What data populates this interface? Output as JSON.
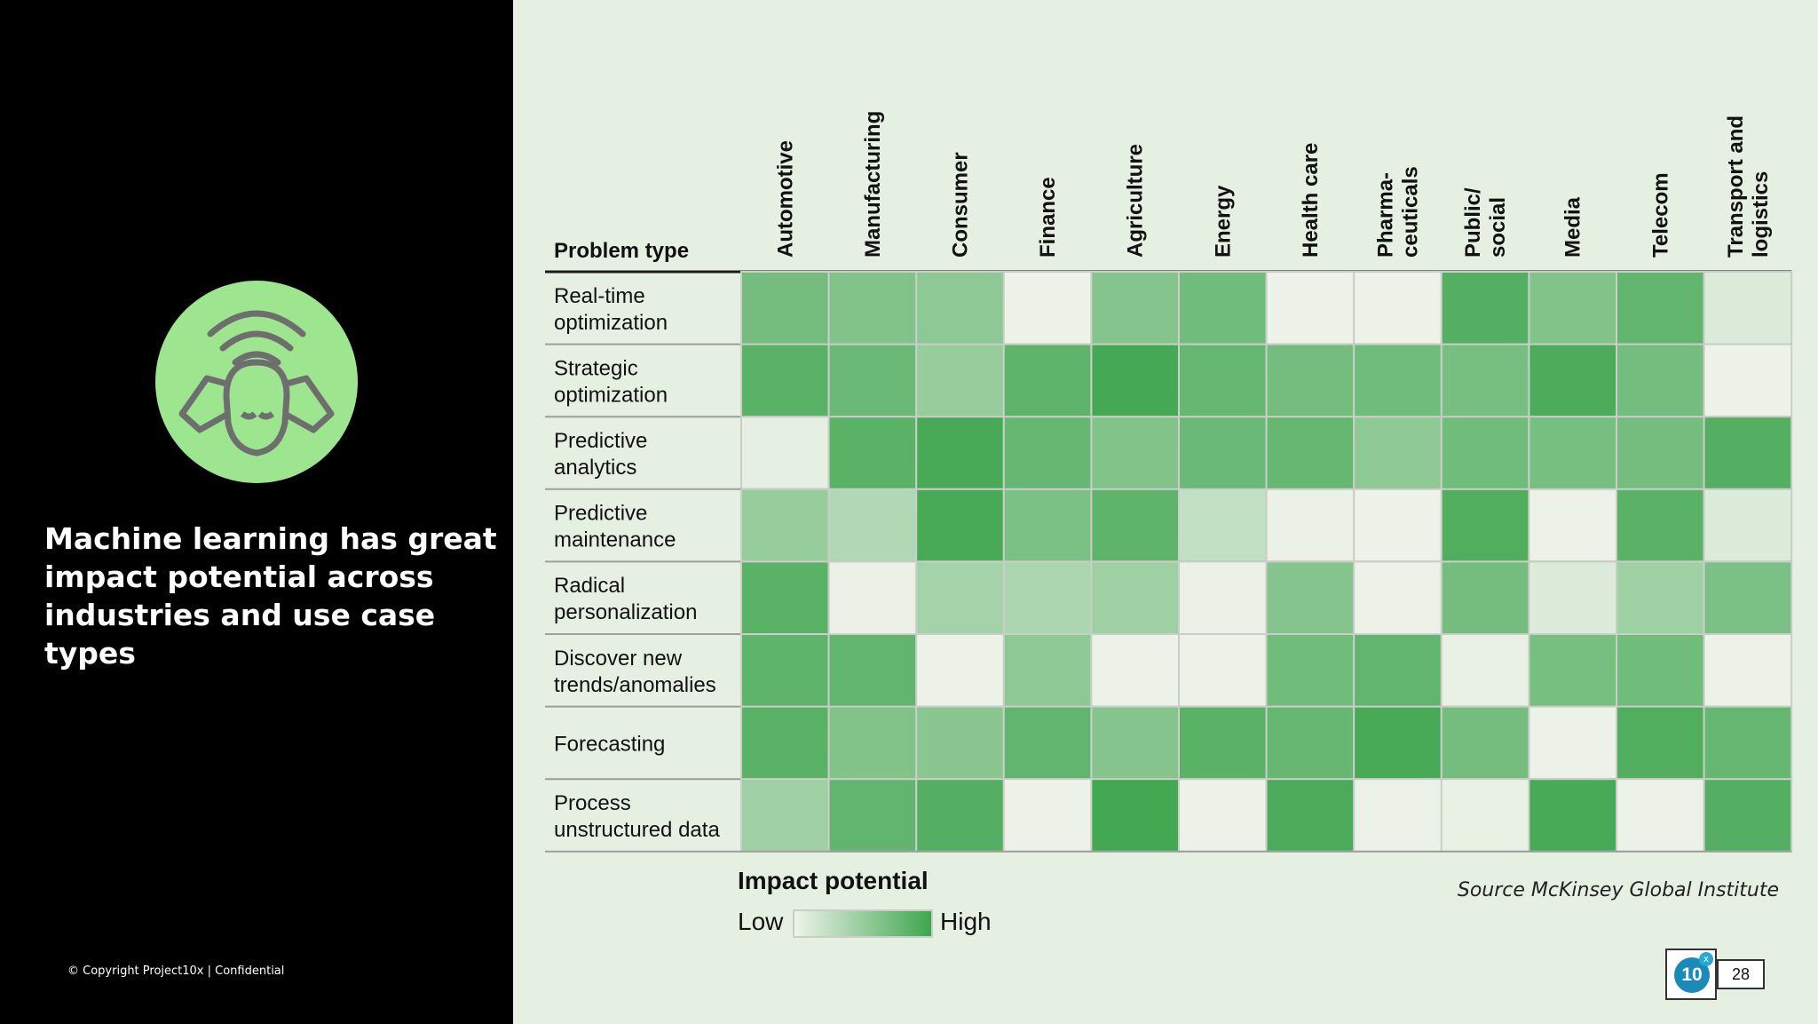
{
  "slide": {
    "headline": "Machine learning has great impact potential across industries and use case types",
    "copyright": "© Copyright Project10x | Confidential",
    "source": "Source McKinsey Global Institute",
    "page_number": "28",
    "logo_text": "10",
    "logo_mark": "x",
    "hero_icon": "person-listening-wifi-icon",
    "colors": {
      "left_bg": "#000000",
      "right_bg": "#e6f0e2",
      "circle": "#9de58f",
      "cell_high": "#3fa64f",
      "cell_low": "#eef3ea"
    }
  },
  "legend": {
    "title": "Impact potential",
    "low": "Low",
    "high": "High"
  },
  "chart_data": {
    "type": "heatmap",
    "row_header": "Problem type",
    "columns": [
      [
        "Automotive"
      ],
      [
        "Manufacturing"
      ],
      [
        "Consumer"
      ],
      [
        "Finance"
      ],
      [
        "Agriculture"
      ],
      [
        "Energy"
      ],
      [
        "Health care"
      ],
      [
        "Pharma-",
        "ceuticals"
      ],
      [
        "Public/",
        "social"
      ],
      [
        "Media"
      ],
      [
        "Telecom"
      ],
      [
        "Transport and",
        "logistics"
      ]
    ],
    "rows": [
      [
        "Real-time",
        "optimization"
      ],
      [
        "Strategic",
        "optimization"
      ],
      [
        "Predictive",
        "analytics"
      ],
      [
        "Predictive",
        "maintenance"
      ],
      [
        "Radical",
        "personalization"
      ],
      [
        "Discover new",
        "trends/anomalies"
      ],
      [
        "Forecasting"
      ],
      [
        "Process",
        "unstructured data"
      ]
    ],
    "scale": "0 = Low, 1 = High",
    "values": [
      [
        0.7,
        0.62,
        0.55,
        0.0,
        0.6,
        0.72,
        0.0,
        0.0,
        0.88,
        0.62,
        0.8,
        0.1
      ],
      [
        0.85,
        0.75,
        0.5,
        0.82,
        0.97,
        0.78,
        0.7,
        0.72,
        0.68,
        0.92,
        0.7,
        0.0
      ],
      [
        0.05,
        0.85,
        0.95,
        0.78,
        0.62,
        0.75,
        0.78,
        0.55,
        0.72,
        0.68,
        0.7,
        0.88
      ],
      [
        0.5,
        0.35,
        0.95,
        0.66,
        0.82,
        0.25,
        0.02,
        0.0,
        0.9,
        0.01,
        0.85,
        0.1
      ],
      [
        0.85,
        0.02,
        0.42,
        0.38,
        0.45,
        0.02,
        0.6,
        0.01,
        0.7,
        0.1,
        0.45,
        0.66
      ],
      [
        0.82,
        0.8,
        0.01,
        0.55,
        0.01,
        0.01,
        0.72,
        0.8,
        0.03,
        0.68,
        0.72,
        0.01
      ],
      [
        0.85,
        0.62,
        0.58,
        0.8,
        0.6,
        0.85,
        0.78,
        0.95,
        0.7,
        0.01,
        0.9,
        0.78
      ],
      [
        0.45,
        0.8,
        0.88,
        0.01,
        0.98,
        0.01,
        0.93,
        0.01,
        0.03,
        0.95,
        0.01,
        0.88
      ]
    ]
  }
}
